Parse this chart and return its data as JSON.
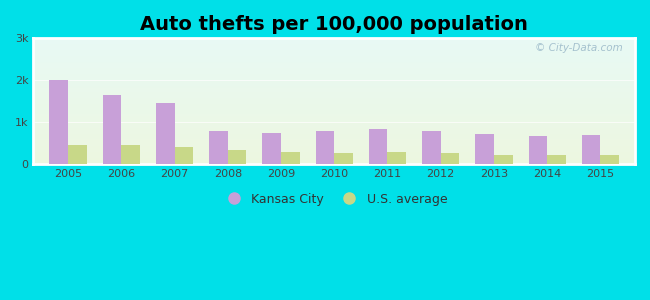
{
  "title": "Auto thefts per 100,000 population",
  "years": [
    2005,
    2006,
    2007,
    2008,
    2009,
    2010,
    2011,
    2012,
    2013,
    2014,
    2015
  ],
  "kansas_city": [
    2000,
    1650,
    1450,
    800,
    750,
    780,
    850,
    800,
    720,
    670,
    700
  ],
  "us_average": [
    450,
    450,
    420,
    350,
    280,
    270,
    280,
    260,
    230,
    220,
    230
  ],
  "kc_color": "#c8a0d8",
  "us_color": "#c8d888",
  "ylim": [
    0,
    3000
  ],
  "yticks": [
    0,
    1000,
    2000,
    3000
  ],
  "ytick_labels": [
    "0",
    "1k",
    "2k",
    "3k"
  ],
  "bg_top": "#e8faf5",
  "bg_bottom": "#edf7e0",
  "outer_bg": "#00e0e8",
  "plot_border": "#ffffff",
  "title_fontsize": 14,
  "bar_width": 0.35,
  "watermark": "© City-Data.com",
  "legend_kc": "Kansas City",
  "legend_us": "U.S. average"
}
